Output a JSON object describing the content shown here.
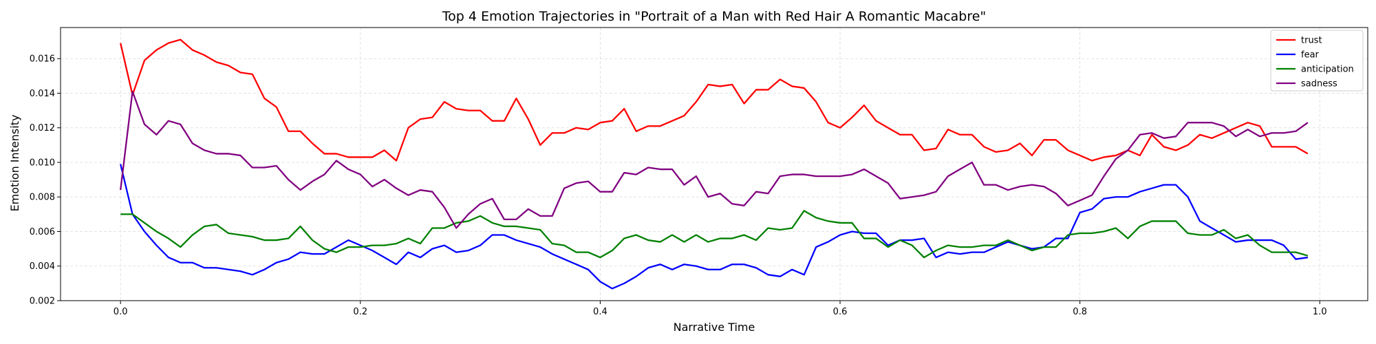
{
  "chart_data": {
    "type": "line",
    "title": "Top 4 Emotion Trajectories in \"Portrait of a Man with Red Hair A Romantic Macabre\"",
    "xlabel": "Narrative Time",
    "ylabel": "Emotion Intensity",
    "xlim": [
      -0.05,
      1.04
    ],
    "ylim": [
      0.002,
      0.0178
    ],
    "xticks": [
      0.0,
      0.2,
      0.4,
      0.6,
      0.8,
      1.0
    ],
    "xtick_labels": [
      "0.0",
      "0.2",
      "0.4",
      "0.6",
      "0.8",
      "1.0"
    ],
    "yticks": [
      0.002,
      0.004,
      0.006,
      0.008,
      0.01,
      0.012,
      0.014,
      0.016
    ],
    "ytick_labels": [
      "0.002",
      "0.004",
      "0.006",
      "0.008",
      "0.010",
      "0.012",
      "0.014",
      "0.016"
    ],
    "grid": true,
    "legend_position": "top-right",
    "x": [
      0.0,
      0.01,
      0.02,
      0.03,
      0.04,
      0.05,
      0.06,
      0.07,
      0.08,
      0.09,
      0.1,
      0.11,
      0.12,
      0.13,
      0.14,
      0.15,
      0.16,
      0.17,
      0.18,
      0.19,
      0.2,
      0.21,
      0.22,
      0.23,
      0.24,
      0.25,
      0.26,
      0.27,
      0.28,
      0.29,
      0.3,
      0.31,
      0.32,
      0.33,
      0.34,
      0.35,
      0.36,
      0.37,
      0.38,
      0.39,
      0.4,
      0.41,
      0.42,
      0.43,
      0.44,
      0.45,
      0.46,
      0.47,
      0.48,
      0.49,
      0.5,
      0.51,
      0.52,
      0.53,
      0.54,
      0.55,
      0.56,
      0.57,
      0.58,
      0.59,
      0.6,
      0.61,
      0.62,
      0.63,
      0.64,
      0.65,
      0.66,
      0.67,
      0.68,
      0.69,
      0.7,
      0.71,
      0.72,
      0.73,
      0.74,
      0.75,
      0.76,
      0.77,
      0.78,
      0.79,
      0.8,
      0.81,
      0.82,
      0.83,
      0.84,
      0.85,
      0.86,
      0.87,
      0.88,
      0.89,
      0.9,
      0.91,
      0.92,
      0.93,
      0.94,
      0.95,
      0.96,
      0.97,
      0.98,
      0.99
    ],
    "series": [
      {
        "name": "trust",
        "color": "#ff0000",
        "values": [
          0.0169,
          0.0139,
          0.0159,
          0.0165,
          0.0169,
          0.0171,
          0.0165,
          0.0162,
          0.0158,
          0.0156,
          0.0152,
          0.0151,
          0.0137,
          0.0132,
          0.0118,
          0.0118,
          0.0111,
          0.0105,
          0.0105,
          0.0103,
          0.0103,
          0.0103,
          0.0107,
          0.0101,
          0.012,
          0.0125,
          0.0126,
          0.0135,
          0.0131,
          0.013,
          0.013,
          0.0124,
          0.0124,
          0.0137,
          0.0125,
          0.011,
          0.0117,
          0.0117,
          0.012,
          0.0119,
          0.0123,
          0.0124,
          0.0131,
          0.0118,
          0.0121,
          0.0121,
          0.0124,
          0.0127,
          0.0135,
          0.0145,
          0.0144,
          0.0145,
          0.0134,
          0.0142,
          0.0142,
          0.0148,
          0.0144,
          0.0143,
          0.0135,
          0.0123,
          0.012,
          0.0126,
          0.0133,
          0.0124,
          0.012,
          0.0116,
          0.0116,
          0.0107,
          0.0108,
          0.0119,
          0.0116,
          0.0116,
          0.0109,
          0.0106,
          0.0107,
          0.0111,
          0.0104,
          0.0113,
          0.0113,
          0.0107,
          0.0104,
          0.0101,
          0.0103,
          0.0104,
          0.0107,
          0.0104,
          0.0116,
          0.0109,
          0.0107,
          0.011,
          0.0116,
          0.0114,
          0.0117,
          0.012,
          0.0123,
          0.0121,
          0.0109,
          0.0109,
          0.0109,
          0.0105
        ]
      },
      {
        "name": "fear",
        "color": "#0000ff",
        "values": [
          0.0099,
          0.007,
          0.006,
          0.0052,
          0.0045,
          0.0042,
          0.0042,
          0.0039,
          0.0039,
          0.0038,
          0.0037,
          0.0035,
          0.0038,
          0.0042,
          0.0044,
          0.0048,
          0.0047,
          0.0047,
          0.0051,
          0.0055,
          0.0052,
          0.0049,
          0.0045,
          0.0041,
          0.0048,
          0.0045,
          0.005,
          0.0052,
          0.0048,
          0.0049,
          0.0052,
          0.0058,
          0.0058,
          0.0055,
          0.0053,
          0.0051,
          0.0047,
          0.0044,
          0.0041,
          0.0038,
          0.0031,
          0.0027,
          0.003,
          0.0034,
          0.0039,
          0.0041,
          0.0038,
          0.0041,
          0.004,
          0.0038,
          0.0038,
          0.0041,
          0.0041,
          0.0039,
          0.0035,
          0.0034,
          0.0038,
          0.0035,
          0.0051,
          0.0054,
          0.0058,
          0.006,
          0.0059,
          0.0059,
          0.0052,
          0.0055,
          0.0055,
          0.0056,
          0.0045,
          0.0048,
          0.0047,
          0.0048,
          0.0048,
          0.0051,
          0.0054,
          0.0052,
          0.005,
          0.0051,
          0.0056,
          0.0056,
          0.0071,
          0.0073,
          0.0079,
          0.008,
          0.008,
          0.0083,
          0.0085,
          0.0087,
          0.0087,
          0.008,
          0.0066,
          0.0062,
          0.0058,
          0.0054,
          0.0055,
          0.0055,
          0.0055,
          0.0052,
          0.0044,
          0.0045
        ]
      },
      {
        "name": "anticipation",
        "color": "#008000",
        "values": [
          0.007,
          0.007,
          0.0065,
          0.006,
          0.0056,
          0.0051,
          0.0058,
          0.0063,
          0.0064,
          0.0059,
          0.0058,
          0.0057,
          0.0055,
          0.0055,
          0.0056,
          0.0063,
          0.0055,
          0.005,
          0.0048,
          0.0051,
          0.0051,
          0.0052,
          0.0052,
          0.0053,
          0.0056,
          0.0053,
          0.0062,
          0.0062,
          0.0065,
          0.0066,
          0.0069,
          0.0065,
          0.0063,
          0.0063,
          0.0062,
          0.0061,
          0.0053,
          0.0052,
          0.0048,
          0.0048,
          0.0045,
          0.0049,
          0.0056,
          0.0058,
          0.0055,
          0.0054,
          0.0058,
          0.0054,
          0.0058,
          0.0054,
          0.0056,
          0.0056,
          0.0058,
          0.0055,
          0.0062,
          0.0061,
          0.0062,
          0.0072,
          0.0068,
          0.0066,
          0.0065,
          0.0065,
          0.0056,
          0.0056,
          0.0051,
          0.0055,
          0.0052,
          0.0045,
          0.0049,
          0.0052,
          0.0051,
          0.0051,
          0.0052,
          0.0052,
          0.0055,
          0.0052,
          0.0049,
          0.0051,
          0.0051,
          0.0058,
          0.0059,
          0.0059,
          0.006,
          0.0062,
          0.0056,
          0.0063,
          0.0066,
          0.0066,
          0.0066,
          0.0059,
          0.0058,
          0.0058,
          0.0061,
          0.0056,
          0.0058,
          0.0052,
          0.0048,
          0.0048,
          0.0048,
          0.0046
        ]
      },
      {
        "name": "sadness",
        "color": "#800080",
        "values": [
          0.0084,
          0.0141,
          0.0122,
          0.0116,
          0.0124,
          0.0122,
          0.0111,
          0.0107,
          0.0105,
          0.0105,
          0.0104,
          0.0097,
          0.0097,
          0.0098,
          0.009,
          0.0084,
          0.0089,
          0.0093,
          0.0101,
          0.0096,
          0.0093,
          0.0086,
          0.009,
          0.0085,
          0.0081,
          0.0084,
          0.0083,
          0.0074,
          0.0062,
          0.007,
          0.0076,
          0.0079,
          0.0067,
          0.0067,
          0.0073,
          0.0069,
          0.0069,
          0.0085,
          0.0088,
          0.0089,
          0.0083,
          0.0083,
          0.0094,
          0.0093,
          0.0097,
          0.0096,
          0.0096,
          0.0087,
          0.0092,
          0.008,
          0.0082,
          0.0076,
          0.0075,
          0.0083,
          0.0082,
          0.0092,
          0.0093,
          0.0093,
          0.0092,
          0.0092,
          0.0092,
          0.0093,
          0.0096,
          0.0092,
          0.0088,
          0.0079,
          0.008,
          0.0081,
          0.0083,
          0.0092,
          0.0096,
          0.01,
          0.0087,
          0.0087,
          0.0084,
          0.0086,
          0.0087,
          0.0086,
          0.0082,
          0.0075,
          0.0078,
          0.0081,
          0.0092,
          0.0102,
          0.0107,
          0.0116,
          0.0117,
          0.0114,
          0.0115,
          0.0123,
          0.0123,
          0.0123,
          0.0121,
          0.0115,
          0.0119,
          0.0115,
          0.0117,
          0.0117,
          0.0118,
          0.0123
        ]
      }
    ]
  }
}
